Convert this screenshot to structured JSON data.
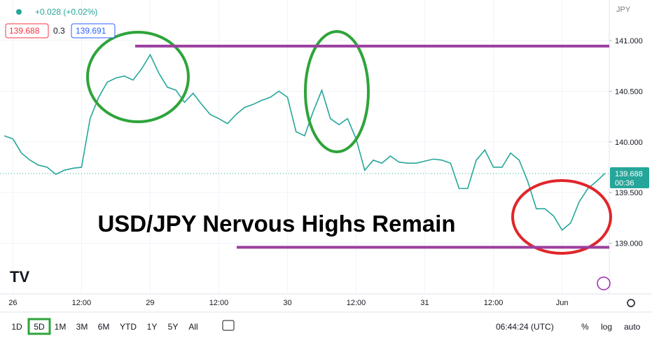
{
  "chart_data": {
    "type": "line",
    "title": "USD/JPY Nervous Highs Remain",
    "categories": [
      null,
      "26",
      null,
      null,
      null,
      null,
      null,
      null,
      null,
      "12:00",
      null,
      null,
      null,
      null,
      null,
      null,
      null,
      "29",
      null,
      null,
      null,
      null,
      null,
      null,
      null,
      "12:00",
      null,
      null,
      null,
      null,
      null,
      null,
      null,
      "30",
      null,
      null,
      null,
      null,
      null,
      null,
      null,
      "12:00",
      null,
      null,
      null,
      null,
      null,
      null,
      null,
      "31",
      null,
      null,
      null,
      null,
      null,
      null,
      null,
      "12:00",
      null,
      null,
      null,
      null,
      null,
      null,
      null,
      "Jun",
      null,
      null,
      null,
      null,
      null
    ],
    "series": [
      {
        "name": "USD/JPY",
        "color": "#26a69a",
        "values": [
          140.06,
          140.03,
          139.89,
          139.82,
          139.77,
          139.75,
          139.68,
          139.72,
          139.74,
          139.75,
          140.23,
          140.44,
          140.59,
          140.63,
          140.65,
          140.61,
          140.72,
          140.86,
          140.68,
          140.54,
          140.51,
          140.39,
          140.48,
          140.37,
          140.27,
          140.23,
          140.18,
          140.27,
          140.34,
          140.37,
          140.41,
          140.44,
          140.5,
          140.44,
          140.1,
          140.06,
          140.3,
          140.51,
          140.23,
          140.17,
          140.23,
          140.03,
          139.72,
          139.82,
          139.79,
          139.86,
          139.8,
          139.79,
          139.79,
          139.81,
          139.83,
          139.82,
          139.79,
          139.54,
          139.54,
          139.82,
          139.92,
          139.75,
          139.75,
          139.89,
          139.82,
          139.61,
          139.34,
          139.34,
          139.27,
          139.13,
          139.2,
          139.41,
          139.54,
          139.61,
          139.69
        ]
      }
    ],
    "ylim": [
      138.5,
      141.4
    ],
    "yticks": [
      {
        "value": 139,
        "label": "139.000"
      },
      {
        "value": 139.5,
        "label": "139.500"
      },
      {
        "value": 140,
        "label": "140.000"
      },
      {
        "value": 140.5,
        "label": "140.500"
      },
      {
        "value": 141,
        "label": "141.000"
      }
    ],
    "reference_lines": [
      {
        "value": 140.945,
        "color": "#9c3fa0"
      },
      {
        "value": 138.96,
        "color": "#9c3fa0"
      }
    ],
    "currency": "JPY",
    "last_price": {
      "value": 139.688,
      "label": "139.688",
      "countdown": "00:36",
      "color": "#26a69a"
    }
  },
  "ui": {
    "change": "+0.028 (+0.02%)",
    "bid": "139.688",
    "spread": "0.3",
    "ask": "139.691",
    "ranges": [
      "1D",
      "5D",
      "1M",
      "3M",
      "6M",
      "YTD",
      "1Y",
      "5Y",
      "All"
    ],
    "selected": "5D",
    "clock": "06:44:24 (UTC)",
    "percent": "%",
    "log": "log",
    "auto": "auto"
  }
}
